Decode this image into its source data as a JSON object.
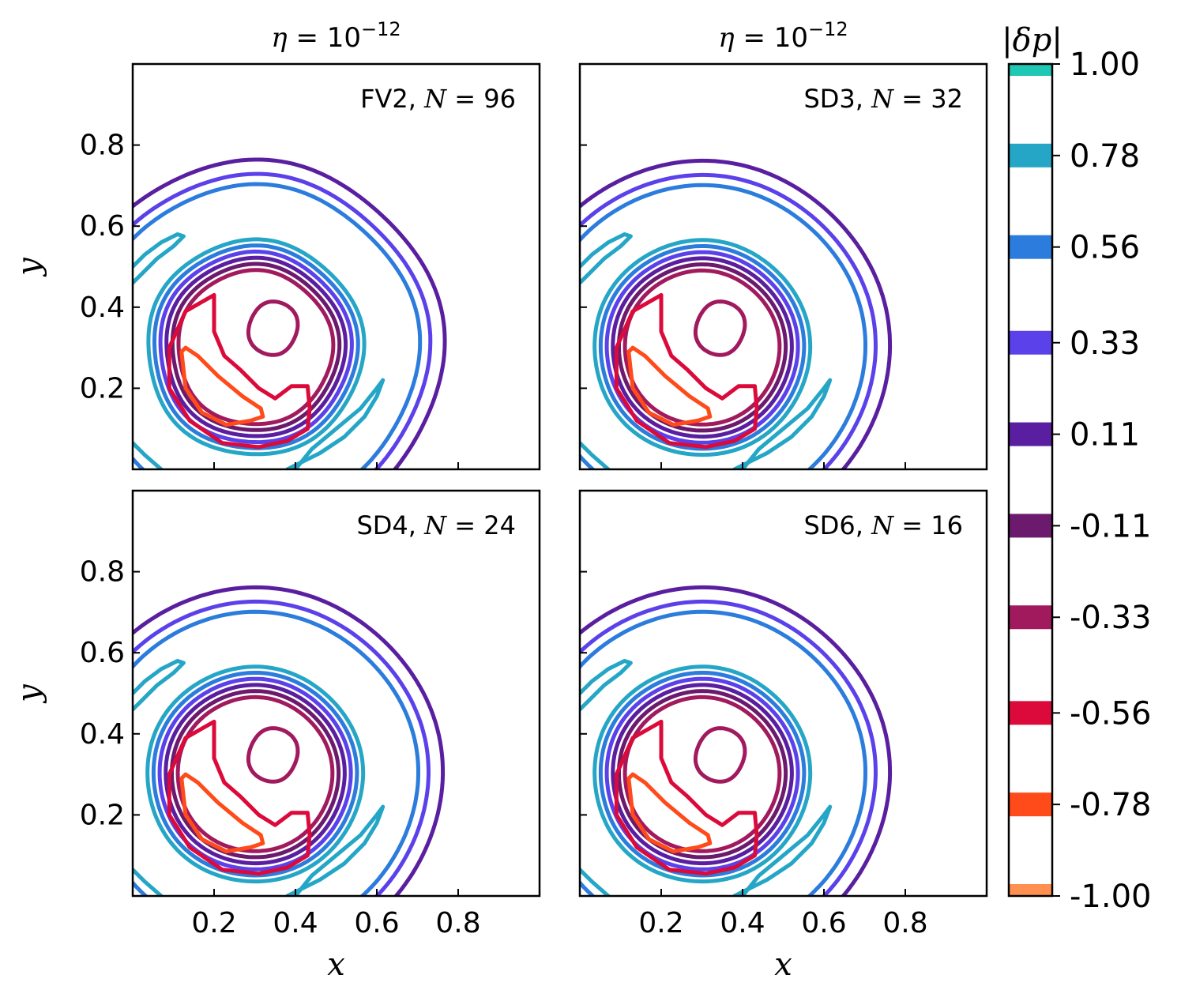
{
  "chart_data": {
    "type": "contour",
    "panels": [
      {
        "title_prefix": "η = 10",
        "title_exp": "−12",
        "annotation": "FV2, N = 96",
        "annotation_prefix": "FV2, ",
        "annotation_var": "N",
        "annotation_value": " = 96",
        "xlabel": "",
        "ylabel": "y",
        "xticklabels": [],
        "yticklabels": [
          "0.2",
          "0.4",
          "0.6",
          "0.8"
        ]
      },
      {
        "title_prefix": "η = 10",
        "title_exp": "−12",
        "annotation": "SD3, N = 32",
        "annotation_prefix": "SD3, ",
        "annotation_var": "N",
        "annotation_value": " = 32",
        "xlabel": "",
        "ylabel": "",
        "xticklabels": [],
        "yticklabels": []
      },
      {
        "title_prefix": "",
        "title_exp": "",
        "annotation": "SD4, N = 24",
        "annotation_prefix": "SD4, ",
        "annotation_var": "N",
        "annotation_value": " = 24",
        "xlabel": "x",
        "ylabel": "y",
        "xticklabels": [
          "0.2",
          "0.4",
          "0.6",
          "0.8"
        ],
        "yticklabels": [
          "0.2",
          "0.4",
          "0.6",
          "0.8"
        ]
      },
      {
        "title_prefix": "",
        "title_exp": "",
        "annotation": "SD6, N = 16",
        "annotation_prefix": "SD6, ",
        "annotation_var": "N",
        "annotation_value": " = 16",
        "xlabel": "x",
        "ylabel": "",
        "xticklabels": [
          "0.2",
          "0.4",
          "0.6",
          "0.8"
        ],
        "yticklabels": []
      }
    ],
    "xlim": [
      0,
      1
    ],
    "ylim": [
      0,
      1
    ],
    "ticks": [
      0.2,
      0.4,
      0.6,
      0.8
    ],
    "vortex_center": [
      0.3,
      0.3
    ],
    "contour_levels": [
      {
        "level": 0.78,
        "color": "#25a6c6",
        "features": [
          "arc_top_left",
          "arc_bottom_right",
          "arc_bottom_left"
        ]
      },
      {
        "level": 0.56,
        "color": "#2b7cdc",
        "features": [
          "ring"
        ],
        "radius": 0.4
      },
      {
        "level": 0.33,
        "color": "#5b41ea",
        "features": [
          "ring"
        ],
        "radius": 0.425
      },
      {
        "level": 0.11,
        "color": "#5a1fa0",
        "features": [
          "ring"
        ],
        "radius": 0.46
      },
      {
        "level": 0.78,
        "color": "#25a6c6",
        "features": [
          "ring"
        ],
        "radius": 0.265
      },
      {
        "level": 0.56,
        "color": "#2b7cdc",
        "features": [
          "ring"
        ],
        "radius": 0.25
      },
      {
        "level": 0.33,
        "color": "#5b41ea",
        "features": [
          "ring"
        ],
        "radius": 0.235
      },
      {
        "level": 0.11,
        "color": "#5a1fa0",
        "features": [
          "ring"
        ],
        "radius": 0.22
      },
      {
        "level": -0.11,
        "color": "#6c1a6e",
        "features": [
          "ring"
        ],
        "radius": 0.205
      },
      {
        "level": -0.33,
        "color": "#a11a5e",
        "features": [
          "ring",
          "blob"
        ],
        "radius": 0.19
      },
      {
        "level": -0.56,
        "color": "#dc0a3a",
        "features": [
          "c_shape"
        ]
      },
      {
        "level": -0.78,
        "color": "#ff4a1a",
        "features": [
          "crescent"
        ]
      }
    ],
    "colorbar": {
      "title": "|δp|",
      "ticklabels": [
        "1.00",
        "0.78",
        "0.56",
        "0.33",
        "0.11",
        "-0.11",
        "-0.33",
        "-0.56",
        "-0.78",
        "-1.00"
      ],
      "values": [
        1.0,
        0.78,
        0.56,
        0.33,
        0.11,
        -0.11,
        -0.33,
        -0.56,
        -0.78,
        -1.0
      ],
      "colors": [
        "#1fc8b4",
        "#25a6c6",
        "#2b7cdc",
        "#5b41ea",
        "#5a1fa0",
        "#6c1a6e",
        "#a11a5e",
        "#dc0a3a",
        "#ff4a1a",
        "#ff9050"
      ]
    }
  }
}
